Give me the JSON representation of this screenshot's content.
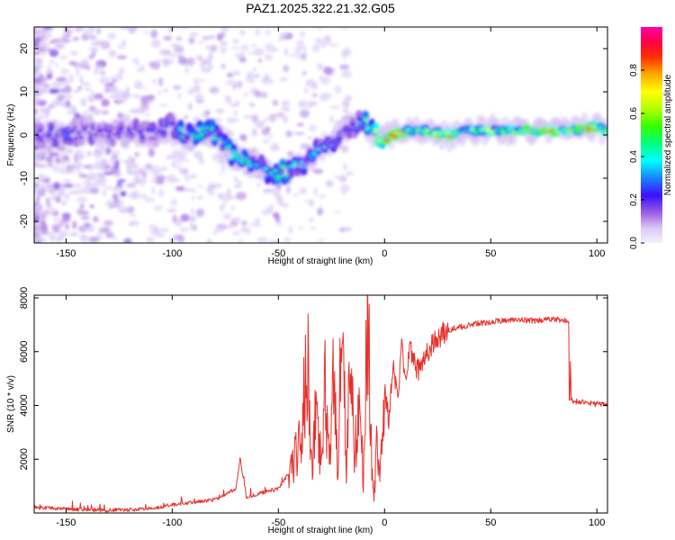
{
  "title": "PAZ1.2025.322.21.32.G05",
  "chart_data": [
    {
      "type": "heatmap",
      "title": "PAZ1.2025.322.21.32.G05",
      "xlabel": "Height of straight line (km)",
      "ylabel": "Frequency (Hz)",
      "xlim": [
        -165,
        105
      ],
      "ylim": [
        -25,
        25
      ],
      "xticks": [
        -150,
        -100,
        -50,
        0,
        50,
        100
      ],
      "yticks": [
        -20,
        -10,
        0,
        10,
        20
      ],
      "colorbar": {
        "label": "Normalized spectral amplitude",
        "range": [
          0.0,
          1.0
        ],
        "ticks": [
          0.0,
          0.2,
          0.4,
          0.6,
          0.8
        ],
        "tick_labels": [
          "0.0",
          "0.2",
          "0.4",
          "0.6",
          "0.8"
        ]
      },
      "ridge_center": {
        "x": [
          -165,
          -150,
          -140,
          -130,
          -120,
          -110,
          -100,
          -95,
          -90,
          -85,
          -80,
          -75,
          -70,
          -65,
          -60,
          -55,
          -50,
          -45,
          -40,
          -35,
          -30,
          -25,
          -20,
          -15,
          -10,
          -5,
          0,
          5,
          10,
          20,
          30,
          40,
          50,
          60,
          70,
          80,
          90,
          100,
          105
        ],
        "frequency": [
          0,
          0,
          1,
          0,
          1,
          0,
          2,
          0,
          -1,
          1,
          0,
          -3,
          -5,
          -6,
          -7,
          -8,
          -9,
          -8,
          -7,
          -5,
          -3,
          -2,
          1,
          2,
          3,
          0,
          -1,
          0,
          1,
          1,
          0,
          1,
          1,
          1,
          1,
          1,
          1,
          2,
          1
        ],
        "amplitude": [
          0.2,
          0.25,
          0.22,
          0.2,
          0.22,
          0.22,
          0.32,
          0.4,
          0.42,
          0.55,
          0.48,
          0.45,
          0.5,
          0.45,
          0.42,
          0.4,
          0.48,
          0.45,
          0.42,
          0.35,
          0.35,
          0.35,
          0.3,
          0.32,
          0.42,
          0.6,
          0.82,
          0.78,
          0.72,
          0.7,
          0.75,
          0.6,
          0.62,
          0.7,
          0.85,
          0.88,
          0.86,
          0.7,
          0.6
        ]
      }
    },
    {
      "type": "line",
      "xlabel": "Height of straight line (km)",
      "ylabel": "SNR (10 * v/v)",
      "xlim": [
        -165,
        105
      ],
      "ylim": [
        0,
        8100
      ],
      "xticks": [
        -150,
        -100,
        -50,
        0,
        50,
        100
      ],
      "yticks": [
        2000,
        4000,
        6000,
        8000
      ],
      "color": "#e8302c",
      "series": [
        {
          "name": "SNR",
          "x": [
            -165,
            -150,
            -140,
            -130,
            -120,
            -110,
            -100,
            -90,
            -80,
            -75,
            -70,
            -68,
            -65,
            -60,
            -55,
            -50,
            -45,
            -40,
            -36,
            -34,
            -32,
            -30,
            -28,
            -26,
            -24,
            -22,
            -20,
            -18,
            -16,
            -14,
            -12,
            -10,
            -8,
            -6,
            -5,
            -4,
            -2,
            0,
            2,
            4,
            6,
            8,
            10,
            12,
            15,
            20,
            25,
            30,
            40,
            50,
            60,
            70,
            80,
            86,
            87,
            88,
            90,
            95,
            100,
            105
          ],
          "y": [
            200,
            150,
            120,
            100,
            120,
            150,
            300,
            400,
            500,
            700,
            900,
            2000,
            600,
            700,
            800,
            900,
            1500,
            2500,
            5600,
            1500,
            4600,
            1800,
            4500,
            2000,
            5200,
            1800,
            8100,
            1500,
            6000,
            2000,
            4500,
            1200,
            8100,
            2000,
            300,
            2500,
            1500,
            4500,
            3500,
            5500,
            4200,
            6200,
            4800,
            6300,
            5200,
            6000,
            6500,
            6800,
            7000,
            7100,
            7200,
            7150,
            7200,
            7150,
            7100,
            4200,
            4150,
            4100,
            4050,
            4000
          ]
        }
      ]
    }
  ]
}
